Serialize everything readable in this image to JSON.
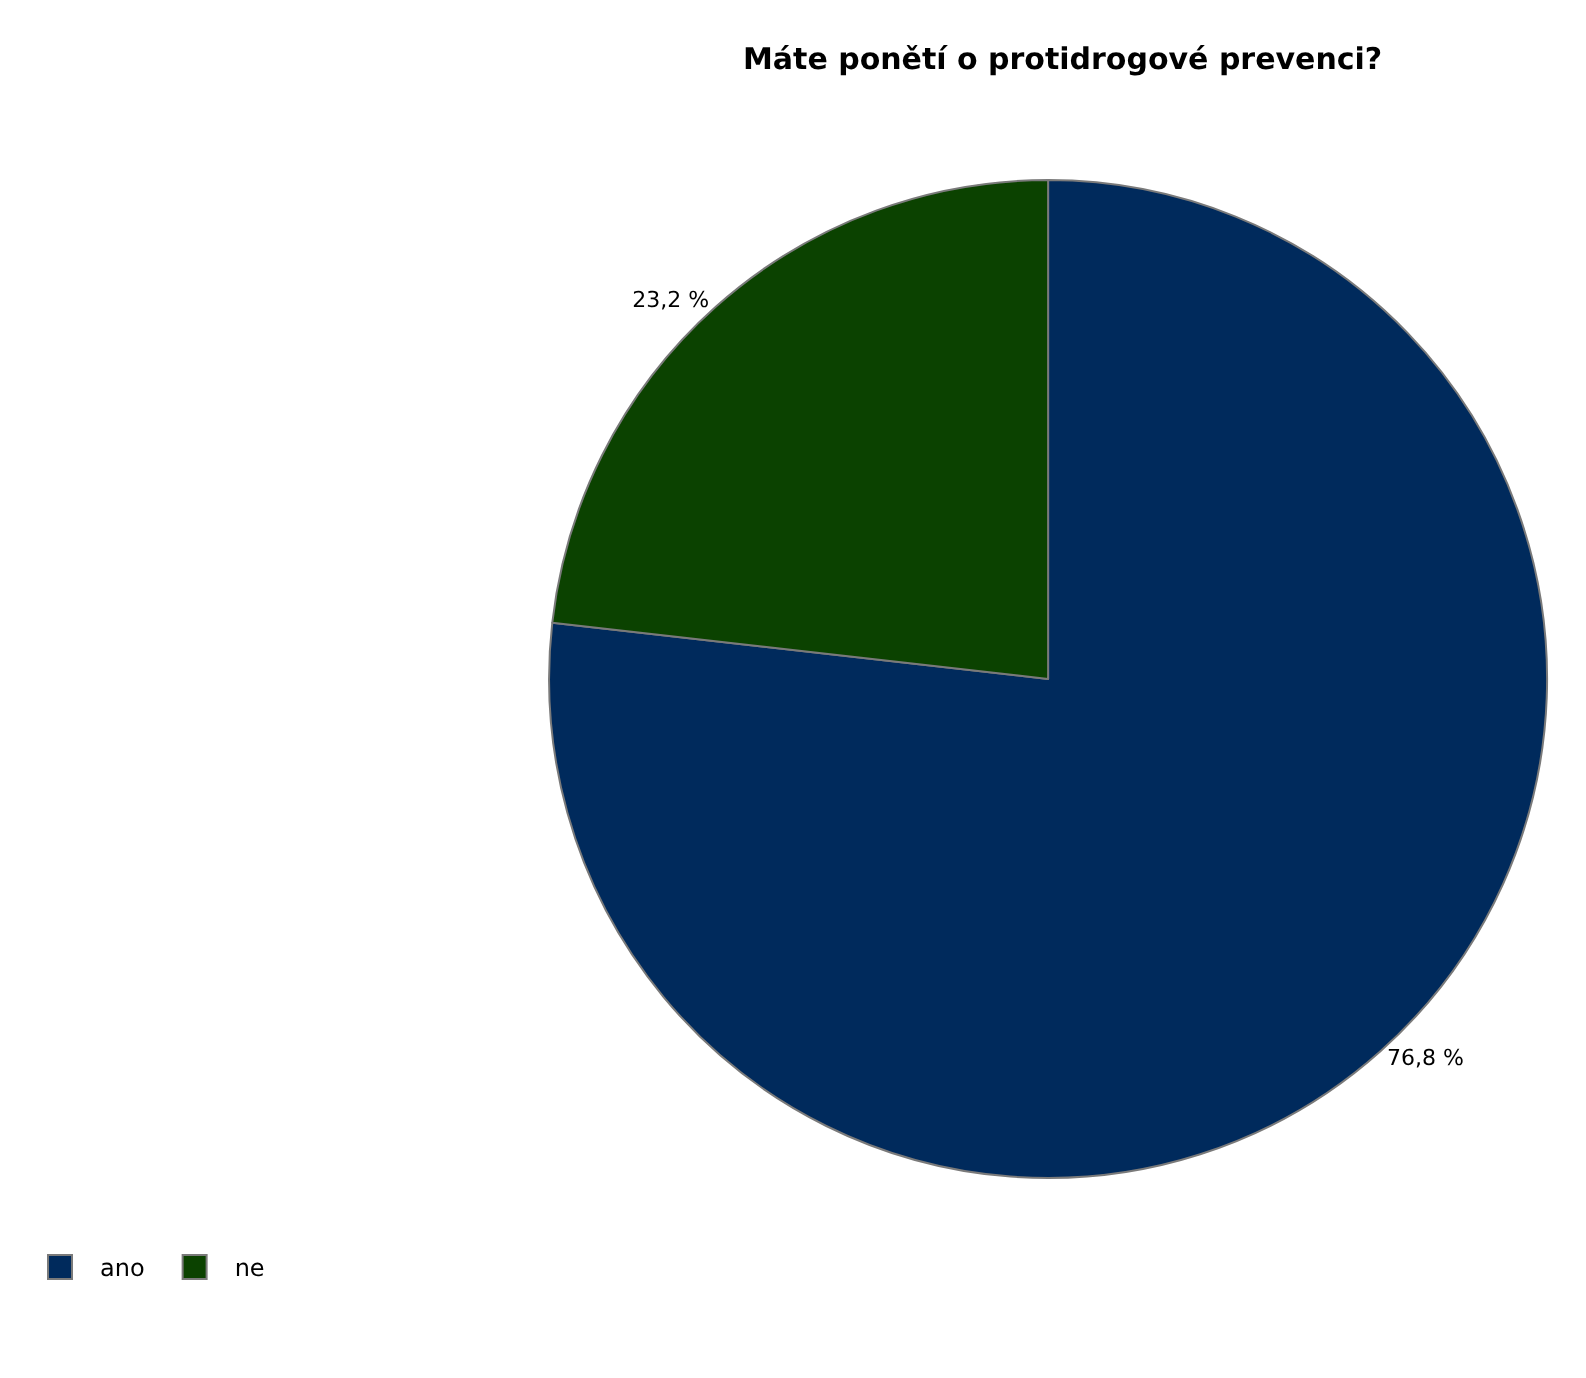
{
  "chart_data": {
    "type": "pie",
    "title": "Máte ponětí o protidrogové prevenci?",
    "categories": [
      "ano",
      "ne"
    ],
    "values": [
      76.8,
      23.2
    ],
    "colors": [
      "#002a5c",
      "#0b4200"
    ],
    "value_labels": [
      "76,8 %",
      "23,2 %"
    ],
    "legend": "bottom left"
  }
}
